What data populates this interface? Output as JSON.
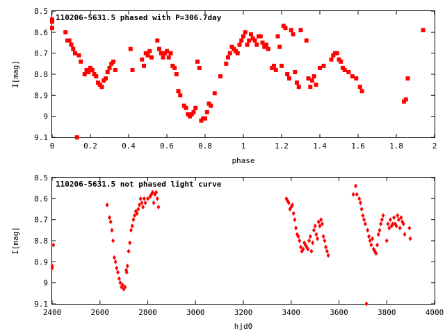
{
  "chart_data": [
    {
      "type": "scatter",
      "title": "110206-5631.5 phased with P=306.7day",
      "xlabel": "phase",
      "ylabel": "I[mag]",
      "xlim": [
        0,
        2
      ],
      "ylim": [
        8.5,
        9.1
      ],
      "y_inverted": true,
      "xticks": [
        "0",
        "0.2",
        "0.4",
        "0.6",
        "0.8",
        "1",
        "1.2",
        "1.4",
        "1.6",
        "1.8",
        "2"
      ],
      "yticks": [
        "8.5",
        "8.6",
        "8.7",
        "8.8",
        "8.9",
        "9",
        "9.1"
      ],
      "grid": false,
      "marker": "filled-square",
      "series": [
        {
          "color": "#ff0000",
          "points": [
            [
              0.0,
              8.54
            ],
            [
              0.0,
              8.55
            ],
            [
              0.0,
              8.58
            ],
            [
              0.07,
              8.6
            ],
            [
              0.08,
              8.64
            ],
            [
              0.09,
              8.64
            ],
            [
              0.1,
              8.66
            ],
            [
              0.11,
              8.68
            ],
            [
              0.12,
              8.7
            ],
            [
              0.13,
              9.1
            ],
            [
              0.14,
              8.71
            ],
            [
              0.15,
              8.74
            ],
            [
              0.17,
              8.8
            ],
            [
              0.18,
              8.78
            ],
            [
              0.19,
              8.79
            ],
            [
              0.2,
              8.77
            ],
            [
              0.21,
              8.78
            ],
            [
              0.22,
              8.8
            ],
            [
              0.23,
              8.81
            ],
            [
              0.24,
              8.84
            ],
            [
              0.25,
              8.85
            ],
            [
              0.26,
              8.86
            ],
            [
              0.27,
              8.83
            ],
            [
              0.28,
              8.82
            ],
            [
              0.29,
              8.79
            ],
            [
              0.3,
              8.77
            ],
            [
              0.31,
              8.75
            ],
            [
              0.32,
              8.74
            ],
            [
              0.33,
              8.78
            ],
            [
              0.41,
              8.68
            ],
            [
              0.42,
              8.78
            ],
            [
              0.47,
              8.73
            ],
            [
              0.48,
              8.76
            ],
            [
              0.49,
              8.7
            ],
            [
              0.5,
              8.71
            ],
            [
              0.51,
              8.69
            ],
            [
              0.52,
              8.72
            ],
            [
              0.55,
              8.64
            ],
            [
              0.56,
              8.68
            ],
            [
              0.57,
              8.7
            ],
            [
              0.58,
              8.72
            ],
            [
              0.59,
              8.7
            ],
            [
              0.6,
              8.69
            ],
            [
              0.61,
              8.72
            ],
            [
              0.62,
              8.7
            ],
            [
              0.63,
              8.76
            ],
            [
              0.64,
              8.77
            ],
            [
              0.65,
              8.8
            ],
            [
              0.66,
              8.88
            ],
            [
              0.67,
              8.9
            ],
            [
              0.69,
              8.95
            ],
            [
              0.7,
              8.96
            ],
            [
              0.71,
              8.99
            ],
            [
              0.72,
              9.0
            ],
            [
              0.73,
              8.99
            ],
            [
              0.74,
              8.98
            ],
            [
              0.75,
              8.96
            ],
            [
              0.76,
              8.74
            ],
            [
              0.77,
              8.77
            ],
            [
              0.78,
              9.02
            ],
            [
              0.79,
              9.01
            ],
            [
              0.8,
              9.01
            ],
            [
              0.81,
              8.98
            ],
            [
              0.82,
              8.94
            ],
            [
              0.83,
              8.95
            ],
            [
              0.85,
              8.89
            ],
            [
              0.88,
              8.81
            ],
            [
              0.91,
              8.75
            ],
            [
              0.92,
              8.72
            ],
            [
              0.93,
              8.7
            ],
            [
              0.94,
              8.67
            ],
            [
              0.95,
              8.68
            ],
            [
              0.96,
              8.69
            ],
            [
              0.97,
              8.7
            ],
            [
              0.98,
              8.66
            ],
            [
              0.99,
              8.64
            ],
            [
              1.0,
              8.62
            ],
            [
              1.01,
              8.6
            ],
            [
              1.02,
              8.66
            ],
            [
              1.03,
              8.64
            ],
            [
              1.04,
              8.61
            ],
            [
              1.05,
              8.63
            ],
            [
              1.06,
              8.64
            ],
            [
              1.07,
              8.66
            ],
            [
              1.08,
              8.62
            ],
            [
              1.09,
              8.62
            ],
            [
              1.1,
              8.65
            ],
            [
              1.11,
              8.67
            ],
            [
              1.12,
              8.66
            ],
            [
              1.13,
              8.68
            ],
            [
              1.15,
              8.77
            ],
            [
              1.16,
              8.76
            ],
            [
              1.17,
              8.78
            ],
            [
              1.18,
              8.62
            ],
            [
              1.19,
              8.67
            ],
            [
              1.2,
              8.76
            ],
            [
              1.21,
              8.57
            ],
            [
              1.22,
              8.58
            ],
            [
              1.23,
              8.8
            ],
            [
              1.24,
              8.82
            ],
            [
              1.25,
              8.59
            ],
            [
              1.26,
              8.61
            ],
            [
              1.27,
              8.79
            ],
            [
              1.28,
              8.84
            ],
            [
              1.29,
              8.86
            ],
            [
              1.3,
              8.59
            ],
            [
              1.33,
              8.64
            ],
            [
              1.34,
              8.82
            ],
            [
              1.35,
              8.86
            ],
            [
              1.36,
              8.83
            ],
            [
              1.37,
              8.81
            ],
            [
              1.38,
              8.85
            ],
            [
              1.4,
              8.77
            ],
            [
              1.42,
              8.76
            ],
            [
              1.46,
              8.73
            ],
            [
              1.47,
              8.71
            ],
            [
              1.48,
              8.7
            ],
            [
              1.49,
              8.7
            ],
            [
              1.5,
              8.73
            ],
            [
              1.51,
              8.74
            ],
            [
              1.52,
              8.77
            ],
            [
              1.53,
              8.78
            ],
            [
              1.55,
              8.79
            ],
            [
              1.57,
              8.81
            ],
            [
              1.59,
              8.82
            ],
            [
              1.61,
              8.86
            ],
            [
              1.62,
              8.88
            ],
            [
              1.84,
              8.93
            ],
            [
              1.85,
              8.92
            ],
            [
              1.86,
              8.82
            ],
            [
              1.94,
              8.59
            ]
          ]
        }
      ]
    },
    {
      "type": "scatter",
      "title": "110206-5631.5 not phased light curve",
      "xlabel": "hjd0",
      "ylabel": "I[mag]",
      "xlim": [
        2400,
        4000
      ],
      "ylim": [
        8.5,
        9.1
      ],
      "y_inverted": true,
      "xticks": [
        "2400",
        "2600",
        "2800",
        "3000",
        "3200",
        "3400",
        "3600",
        "3800",
        "4000"
      ],
      "yticks": [
        "8.5",
        "8.6",
        "8.7",
        "8.8",
        "8.9",
        "9",
        "9.1"
      ],
      "grid": false,
      "marker": "filled-diamond",
      "series": [
        {
          "color": "#ff0000",
          "points": [
            [
              2400,
              8.92
            ],
            [
              2400,
              8.93
            ],
            [
              2405,
              8.82
            ],
            [
              2630,
              8.63
            ],
            [
              2640,
              8.69
            ],
            [
              2645,
              8.71
            ],
            [
              2650,
              8.75
            ],
            [
              2655,
              8.8
            ],
            [
              2660,
              8.88
            ],
            [
              2665,
              8.9
            ],
            [
              2670,
              8.93
            ],
            [
              2675,
              8.95
            ],
            [
              2680,
              8.98
            ],
            [
              2685,
              9.0
            ],
            [
              2690,
              9.02
            ],
            [
              2695,
              9.01
            ],
            [
              2700,
              9.03
            ],
            [
              2705,
              9.02
            ],
            [
              2710,
              8.94
            ],
            [
              2712,
              8.95
            ],
            [
              2715,
              8.92
            ],
            [
              2720,
              8.85
            ],
            [
              2725,
              8.81
            ],
            [
              2730,
              8.75
            ],
            [
              2735,
              8.73
            ],
            [
              2740,
              8.7
            ],
            [
              2745,
              8.68
            ],
            [
              2750,
              8.66
            ],
            [
              2755,
              8.67
            ],
            [
              2760,
              8.65
            ],
            [
              2765,
              8.63
            ],
            [
              2770,
              8.6
            ],
            [
              2775,
              8.62
            ],
            [
              2780,
              8.64
            ],
            [
              2785,
              8.6
            ],
            [
              2790,
              8.62
            ],
            [
              2800,
              8.6
            ],
            [
              2810,
              8.59
            ],
            [
              2815,
              8.58
            ],
            [
              2820,
              8.57
            ],
            [
              2825,
              8.62
            ],
            [
              2830,
              8.58
            ],
            [
              2835,
              8.57
            ],
            [
              2840,
              8.6
            ],
            [
              2845,
              8.64
            ],
            [
              3380,
              8.6
            ],
            [
              3385,
              8.61
            ],
            [
              3390,
              8.62
            ],
            [
              3395,
              8.65
            ],
            [
              3400,
              8.64
            ],
            [
              3405,
              8.63
            ],
            [
              3410,
              8.67
            ],
            [
              3415,
              8.7
            ],
            [
              3420,
              8.74
            ],
            [
              3425,
              8.77
            ],
            [
              3430,
              8.78
            ],
            [
              3435,
              8.8
            ],
            [
              3440,
              8.83
            ],
            [
              3445,
              8.85
            ],
            [
              3450,
              8.84
            ],
            [
              3455,
              8.81
            ],
            [
              3460,
              8.82
            ],
            [
              3465,
              8.83
            ],
            [
              3470,
              8.84
            ],
            [
              3475,
              8.8
            ],
            [
              3480,
              8.78
            ],
            [
              3485,
              8.85
            ],
            [
              3490,
              8.81
            ],
            [
              3495,
              8.75
            ],
            [
              3500,
              8.73
            ],
            [
              3505,
              8.77
            ],
            [
              3510,
              8.79
            ],
            [
              3515,
              8.71
            ],
            [
              3520,
              8.73
            ],
            [
              3525,
              8.7
            ],
            [
              3530,
              8.72
            ],
            [
              3535,
              8.78
            ],
            [
              3540,
              8.8
            ],
            [
              3545,
              8.83
            ],
            [
              3550,
              8.85
            ],
            [
              3555,
              8.87
            ],
            [
              3660,
              8.58
            ],
            [
              3670,
              8.54
            ],
            [
              3675,
              8.58
            ],
            [
              3685,
              8.6
            ],
            [
              3690,
              8.62
            ],
            [
              3695,
              8.65
            ],
            [
              3700,
              8.68
            ],
            [
              3705,
              8.7
            ],
            [
              3710,
              8.72
            ],
            [
              3715,
              9.1
            ],
            [
              3720,
              8.75
            ],
            [
              3725,
              8.78
            ],
            [
              3730,
              8.8
            ],
            [
              3735,
              8.82
            ],
            [
              3740,
              8.79
            ],
            [
              3745,
              8.84
            ],
            [
              3750,
              8.85
            ],
            [
              3755,
              8.86
            ],
            [
              3760,
              8.82
            ],
            [
              3765,
              8.77
            ],
            [
              3770,
              8.75
            ],
            [
              3775,
              8.72
            ],
            [
              3780,
              8.7
            ],
            [
              3785,
              8.68
            ],
            [
              3800,
              8.8
            ],
            [
              3805,
              8.72
            ],
            [
              3810,
              8.74
            ],
            [
              3815,
              8.7
            ],
            [
              3820,
              8.73
            ],
            [
              3825,
              8.72
            ],
            [
              3830,
              8.69
            ],
            [
              3835,
              8.72
            ],
            [
              3840,
              8.73
            ],
            [
              3845,
              8.68
            ],
            [
              3850,
              8.7
            ],
            [
              3855,
              8.74
            ],
            [
              3860,
              8.69
            ],
            [
              3865,
              8.71
            ],
            [
              3870,
              8.72
            ],
            [
              3875,
              8.77
            ],
            [
              3895,
              8.74
            ],
            [
              3898,
              8.79
            ]
          ]
        }
      ]
    }
  ]
}
